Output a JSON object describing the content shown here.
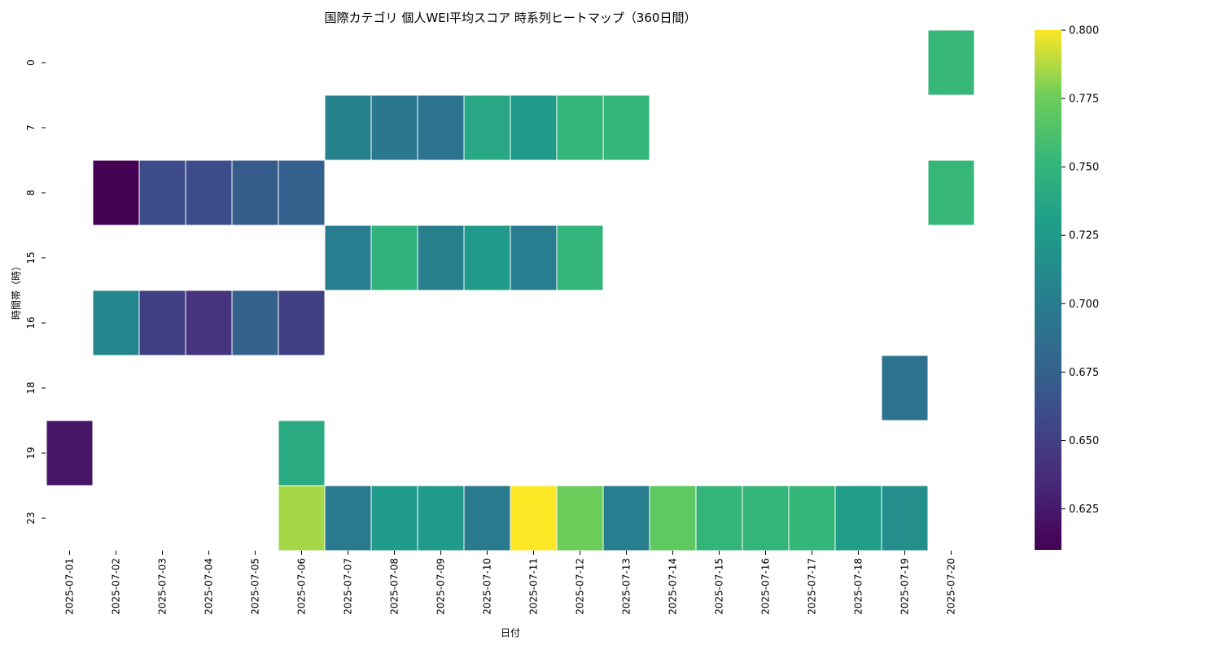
{
  "chart_data": {
    "type": "heatmap",
    "title": "国際カテゴリ 個人WEI平均スコア 時系列ヒートマップ（360日間）",
    "xlabel": "日付",
    "ylabel": "時間帯（時）",
    "x_categories": [
      "2025-07-01",
      "2025-07-02",
      "2025-07-03",
      "2025-07-04",
      "2025-07-05",
      "2025-07-06",
      "2025-07-07",
      "2025-07-08",
      "2025-07-09",
      "2025-07-10",
      "2025-07-11",
      "2025-07-12",
      "2025-07-13",
      "2025-07-14",
      "2025-07-15",
      "2025-07-16",
      "2025-07-17",
      "2025-07-18",
      "2025-07-19",
      "2025-07-20"
    ],
    "y_categories": [
      "0",
      "7",
      "8",
      "15",
      "16",
      "18",
      "19",
      "23"
    ],
    "cells": [
      {
        "x": "2025-07-20",
        "y": "0",
        "value": 0.753
      },
      {
        "x": "2025-07-07",
        "y": "7",
        "value": 0.706
      },
      {
        "x": "2025-07-08",
        "y": "7",
        "value": 0.695
      },
      {
        "x": "2025-07-09",
        "y": "7",
        "value": 0.69
      },
      {
        "x": "2025-07-10",
        "y": "7",
        "value": 0.737
      },
      {
        "x": "2025-07-11",
        "y": "7",
        "value": 0.725
      },
      {
        "x": "2025-07-12",
        "y": "7",
        "value": 0.75
      },
      {
        "x": "2025-07-13",
        "y": "7",
        "value": 0.75
      },
      {
        "x": "2025-07-02",
        "y": "8",
        "value": 0.61
      },
      {
        "x": "2025-07-03",
        "y": "8",
        "value": 0.66
      },
      {
        "x": "2025-07-04",
        "y": "8",
        "value": 0.66
      },
      {
        "x": "2025-07-05",
        "y": "8",
        "value": 0.672
      },
      {
        "x": "2025-07-06",
        "y": "8",
        "value": 0.675
      },
      {
        "x": "2025-07-20",
        "y": "8",
        "value": 0.753
      },
      {
        "x": "2025-07-07",
        "y": "15",
        "value": 0.7
      },
      {
        "x": "2025-07-08",
        "y": "15",
        "value": 0.748
      },
      {
        "x": "2025-07-09",
        "y": "15",
        "value": 0.702
      },
      {
        "x": "2025-07-10",
        "y": "15",
        "value": 0.725
      },
      {
        "x": "2025-07-11",
        "y": "15",
        "value": 0.7
      },
      {
        "x": "2025-07-12",
        "y": "15",
        "value": 0.75
      },
      {
        "x": "2025-07-02",
        "y": "16",
        "value": 0.708
      },
      {
        "x": "2025-07-03",
        "y": "16",
        "value": 0.65
      },
      {
        "x": "2025-07-04",
        "y": "16",
        "value": 0.642
      },
      {
        "x": "2025-07-05",
        "y": "16",
        "value": 0.675
      },
      {
        "x": "2025-07-06",
        "y": "16",
        "value": 0.65
      },
      {
        "x": "2025-07-19",
        "y": "18",
        "value": 0.69
      },
      {
        "x": "2025-07-01",
        "y": "19",
        "value": 0.622
      },
      {
        "x": "2025-07-06",
        "y": "19",
        "value": 0.74
      },
      {
        "x": "2025-07-06",
        "y": "23",
        "value": 0.785
      },
      {
        "x": "2025-07-07",
        "y": "23",
        "value": 0.698
      },
      {
        "x": "2025-07-08",
        "y": "23",
        "value": 0.725
      },
      {
        "x": "2025-07-09",
        "y": "23",
        "value": 0.725
      },
      {
        "x": "2025-07-10",
        "y": "23",
        "value": 0.698
      },
      {
        "x": "2025-07-11",
        "y": "23",
        "value": 0.8
      },
      {
        "x": "2025-07-12",
        "y": "23",
        "value": 0.775
      },
      {
        "x": "2025-07-13",
        "y": "23",
        "value": 0.7
      },
      {
        "x": "2025-07-14",
        "y": "23",
        "value": 0.77
      },
      {
        "x": "2025-07-15",
        "y": "23",
        "value": 0.75
      },
      {
        "x": "2025-07-16",
        "y": "23",
        "value": 0.75
      },
      {
        "x": "2025-07-17",
        "y": "23",
        "value": 0.752
      },
      {
        "x": "2025-07-18",
        "y": "23",
        "value": 0.728
      },
      {
        "x": "2025-07-19",
        "y": "23",
        "value": 0.715
      }
    ],
    "colormap": "viridis",
    "colorbar": {
      "vmin": 0.61,
      "vmax": 0.8,
      "ticks": [
        "0.625",
        "0.650",
        "0.675",
        "0.700",
        "0.725",
        "0.750",
        "0.775",
        "0.800"
      ]
    },
    "grid": false,
    "legend": "colorbar-right"
  }
}
